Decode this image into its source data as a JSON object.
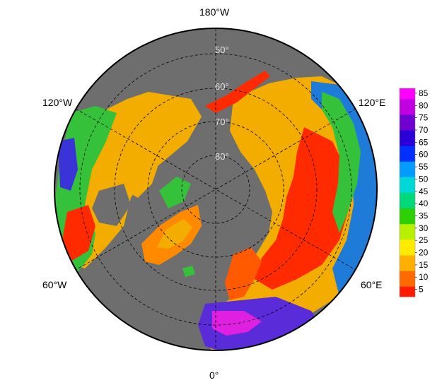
{
  "chart_data": {
    "type": "heatmap",
    "projection": "north-polar-stereographic",
    "longitude_labels": [
      "180°W",
      "120°E",
      "60°E",
      "0°",
      "60°W",
      "120°W"
    ],
    "latitude_labels": [
      "50°",
      "60°",
      "70°",
      "80°"
    ],
    "colorbar": {
      "ticks": [
        "85",
        "80",
        "75",
        "70",
        "65",
        "60",
        "55",
        "50",
        "45",
        "40",
        "35",
        "30",
        "25",
        "20",
        "15",
        "10",
        "5"
      ],
      "range": [
        2,
        87
      ]
    },
    "colors": {
      "ocean": "#6e6e6e",
      "land_background": "#f2ad00",
      "graticule": "#000000"
    }
  }
}
